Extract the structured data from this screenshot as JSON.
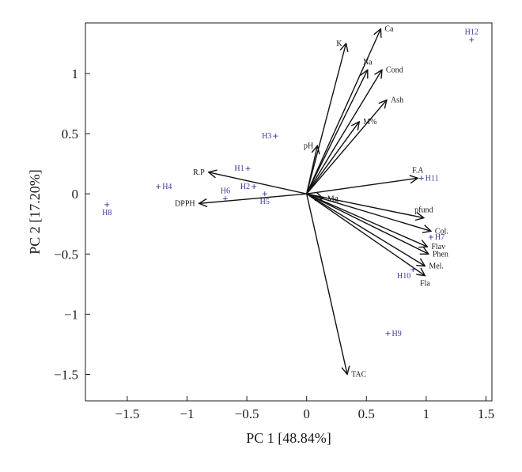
{
  "chart_data": {
    "type": "scatter",
    "subtype": "pca-biplot",
    "title": "",
    "xlabel": "PC 1 [48.84%]",
    "ylabel": "PC 2 [17.20%]",
    "xlim": [
      -1.85,
      1.55
    ],
    "ylim": [
      -1.72,
      1.42
    ],
    "xticks": [
      -1.5,
      -1,
      -0.5,
      0,
      0.5,
      1,
      1.5
    ],
    "yticks": [
      -1.5,
      -1,
      -0.5,
      0,
      0.5,
      1
    ],
    "xtick_labels": [
      "−1.5",
      "−1",
      "−0.5",
      "0",
      "0.5",
      "1",
      "1.5"
    ],
    "ytick_labels": [
      "−1.5",
      "−1",
      "−0.5",
      "0",
      "0.5",
      "1"
    ],
    "grid": false,
    "loadings": [
      {
        "name": "Ca",
        "x": 0.62,
        "y": 1.37,
        "label_pos": "right"
      },
      {
        "name": "K",
        "x": 0.33,
        "y": 1.25,
        "label_pos": "left"
      },
      {
        "name": "Na",
        "x": 0.51,
        "y": 1.03,
        "label_pos": "above"
      },
      {
        "name": "Cond",
        "x": 0.63,
        "y": 1.03,
        "label_pos": "right"
      },
      {
        "name": "Ash",
        "x": 0.67,
        "y": 0.78,
        "label_pos": "right"
      },
      {
        "name": "M%",
        "x": 0.44,
        "y": 0.6,
        "label_pos": "right"
      },
      {
        "name": "pH",
        "x": 0.09,
        "y": 0.4,
        "label_pos": "left"
      },
      {
        "name": "F.A",
        "x": 0.93,
        "y": 0.13,
        "label_pos": "above"
      },
      {
        "name": "R.P",
        "x": -0.82,
        "y": 0.18,
        "label_pos": "left"
      },
      {
        "name": "DPPH",
        "x": -0.9,
        "y": -0.08,
        "label_pos": "left"
      },
      {
        "name": "Mg",
        "x": 0.14,
        "y": -0.04,
        "label_pos": "right"
      },
      {
        "name": "pfund",
        "x": 0.98,
        "y": -0.2,
        "label_pos": "above"
      },
      {
        "name": "Col.",
        "x": 1.04,
        "y": -0.31,
        "label_pos": "right"
      },
      {
        "name": "Flav",
        "x": 1.01,
        "y": -0.44,
        "label_pos": "right"
      },
      {
        "name": "Phen",
        "x": 1.02,
        "y": -0.5,
        "label_pos": "right"
      },
      {
        "name": "Mel.",
        "x": 0.99,
        "y": -0.6,
        "label_pos": "right"
      },
      {
        "name": "Fla",
        "x": 0.99,
        "y": -0.68,
        "label_pos": "below"
      },
      {
        "name": "TAC",
        "x": 0.34,
        "y": -1.5,
        "label_pos": "right"
      }
    ],
    "observations": [
      {
        "name": "H12",
        "x": 1.38,
        "y": 1.28,
        "label_pos": "above"
      },
      {
        "name": "H3",
        "x": -0.26,
        "y": 0.48,
        "label_pos": "left"
      },
      {
        "name": "H1",
        "x": -0.49,
        "y": 0.21,
        "label_pos": "left"
      },
      {
        "name": "H2",
        "x": -0.44,
        "y": 0.06,
        "label_pos": "left"
      },
      {
        "name": "H4",
        "x": -1.24,
        "y": 0.06,
        "label_pos": "right"
      },
      {
        "name": "H6",
        "x": -0.68,
        "y": -0.04,
        "label_pos": "above"
      },
      {
        "name": "H5",
        "x": -0.35,
        "y": 0.0,
        "label_pos": "below"
      },
      {
        "name": "H8",
        "x": -1.67,
        "y": -0.09,
        "label_pos": "below"
      },
      {
        "name": "H11",
        "x": 0.96,
        "y": 0.13,
        "label_pos": "right"
      },
      {
        "name": "H7",
        "x": 1.04,
        "y": -0.36,
        "label_pos": "right"
      },
      {
        "name": "H10",
        "x": 0.89,
        "y": -0.63,
        "label_pos": "below-left"
      },
      {
        "name": "H9",
        "x": 0.68,
        "y": -1.16,
        "label_pos": "right"
      }
    ],
    "colors": {
      "loading_arrow": "#111111",
      "observation": "#3b3b9a",
      "axis": "#1a1a1a"
    }
  }
}
